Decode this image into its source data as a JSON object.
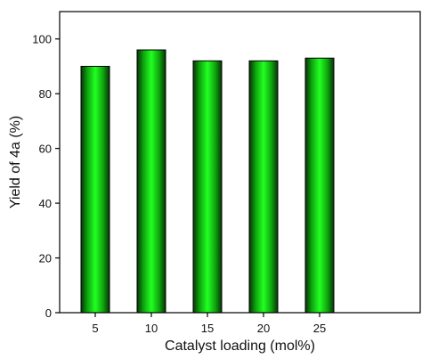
{
  "chart_data": {
    "type": "bar",
    "categories": [
      "5",
      "10",
      "15",
      "20",
      "25"
    ],
    "values": [
      90,
      96,
      92,
      92,
      93
    ],
    "xlabel": "Catalyst loading (mol%)",
    "ylabel": "Yield of 4a (%)",
    "ylim": [
      0,
      110
    ],
    "yticks": [
      0,
      20,
      40,
      60,
      80,
      100
    ],
    "grid": false,
    "bar_color": "#11ee11",
    "bar_edge_color": "#000000"
  }
}
